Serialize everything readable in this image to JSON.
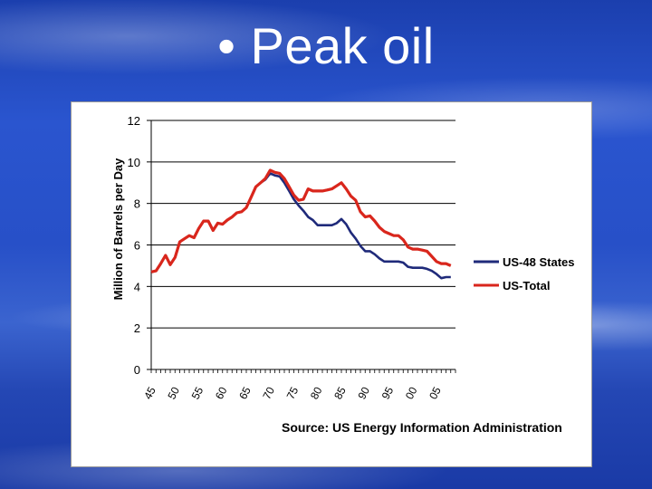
{
  "slide": {
    "title": "• Peak oil"
  },
  "chart_data": {
    "type": "line",
    "title": "",
    "xlabel": "",
    "ylabel": "Million of Barrels per Day",
    "source": "Source: US Energy Information Administration",
    "ylim": [
      0,
      12
    ],
    "xlim": [
      1945,
      2009
    ],
    "yticks": [
      0,
      2,
      4,
      6,
      8,
      10,
      12
    ],
    "xtick_values": [
      1945,
      1950,
      1955,
      1960,
      1965,
      1970,
      1975,
      1980,
      1985,
      1990,
      1995,
      2000,
      2005
    ],
    "xtick_labels": [
      "45",
      "50",
      "55",
      "60",
      "65",
      "70",
      "75",
      "80",
      "85",
      "90",
      "95",
      "00",
      "05"
    ],
    "grid": "horizontal",
    "legend_position": "right",
    "colors": {
      "us48": "#1f2a7a",
      "ustotal": "#d9261c"
    },
    "x": [
      1945,
      1946,
      1947,
      1948,
      1949,
      1950,
      1951,
      1952,
      1953,
      1954,
      1955,
      1956,
      1957,
      1958,
      1959,
      1960,
      1961,
      1962,
      1963,
      1964,
      1965,
      1966,
      1967,
      1968,
      1969,
      1970,
      1971,
      1972,
      1973,
      1974,
      1975,
      1976,
      1977,
      1978,
      1979,
      1980,
      1981,
      1982,
      1983,
      1984,
      1985,
      1986,
      1987,
      1988,
      1989,
      1990,
      1991,
      1992,
      1993,
      1994,
      1995,
      1996,
      1997,
      1998,
      1999,
      2000,
      2001,
      2002,
      2003,
      2004,
      2005,
      2006,
      2007,
      2008
    ],
    "series": [
      {
        "name": "US-48 States",
        "values": [
          4.7,
          4.75,
          5.1,
          5.5,
          5.05,
          5.4,
          6.15,
          6.3,
          6.45,
          6.35,
          6.8,
          7.15,
          7.15,
          6.7,
          7.05,
          7.0,
          7.2,
          7.35,
          7.55,
          7.6,
          7.8,
          8.3,
          8.8,
          9.0,
          9.15,
          9.45,
          9.35,
          9.3,
          9.0,
          8.6,
          8.2,
          7.9,
          7.65,
          7.35,
          7.2,
          6.95,
          6.95,
          6.95,
          6.95,
          7.05,
          7.25,
          7.0,
          6.6,
          6.3,
          5.95,
          5.7,
          5.7,
          5.55,
          5.35,
          5.2,
          5.2,
          5.2,
          5.2,
          5.15,
          4.95,
          4.9,
          4.9,
          4.9,
          4.85,
          4.75,
          4.6,
          4.4,
          4.45,
          4.45
        ]
      },
      {
        "name": "US-Total",
        "values": [
          4.7,
          4.75,
          5.1,
          5.5,
          5.05,
          5.4,
          6.15,
          6.3,
          6.45,
          6.35,
          6.8,
          7.15,
          7.15,
          6.7,
          7.05,
          7.0,
          7.2,
          7.35,
          7.55,
          7.6,
          7.8,
          8.3,
          8.8,
          9.0,
          9.2,
          9.6,
          9.5,
          9.45,
          9.2,
          8.8,
          8.4,
          8.15,
          8.2,
          8.7,
          8.6,
          8.6,
          8.6,
          8.65,
          8.7,
          8.85,
          9.0,
          8.7,
          8.35,
          8.15,
          7.6,
          7.35,
          7.4,
          7.15,
          6.85,
          6.65,
          6.55,
          6.45,
          6.45,
          6.25,
          5.9,
          5.8,
          5.8,
          5.75,
          5.7,
          5.45,
          5.2,
          5.1,
          5.1,
          5.0
        ]
      }
    ]
  }
}
